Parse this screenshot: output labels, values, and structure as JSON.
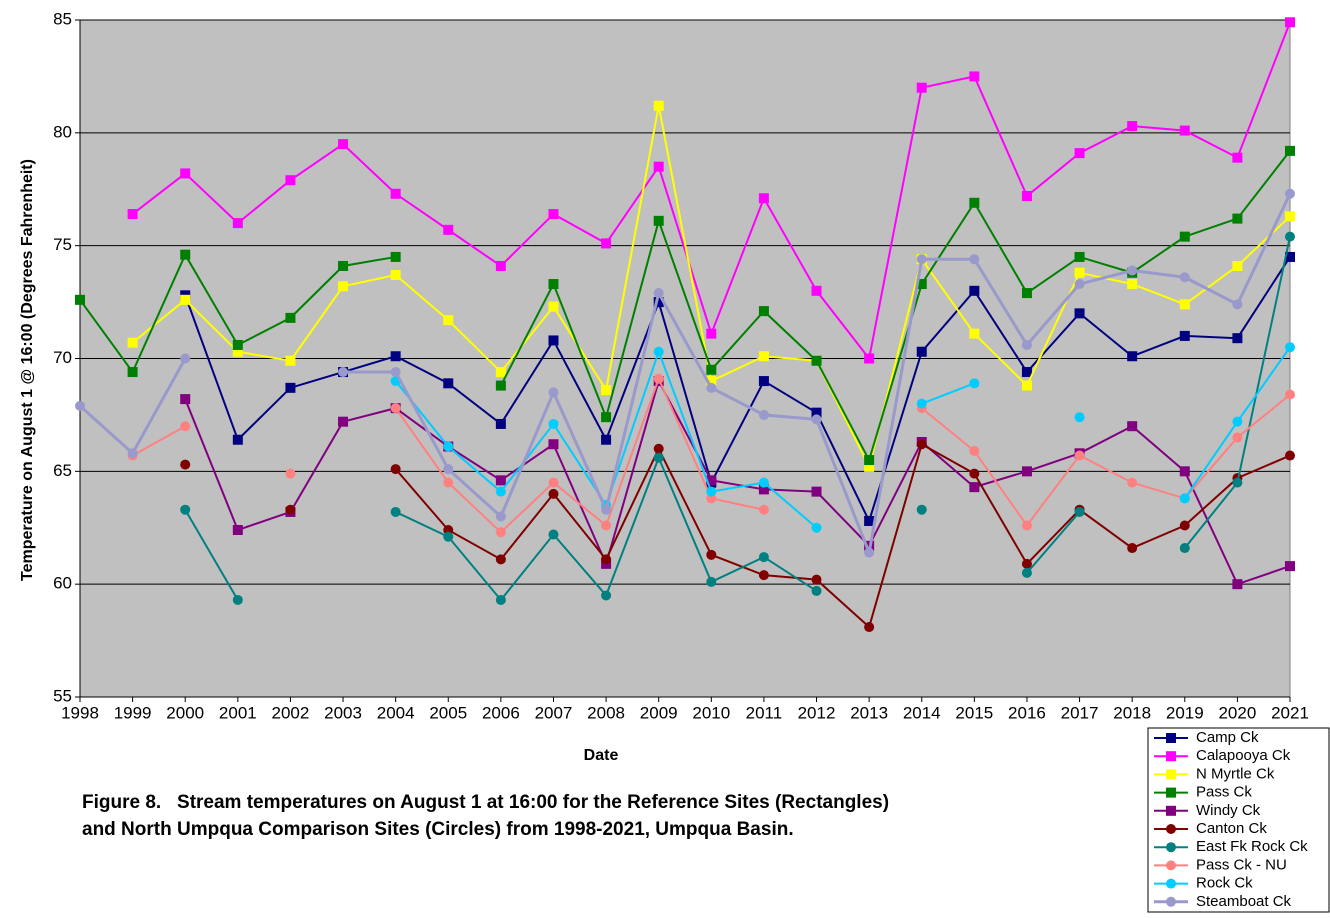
{
  "chart_data": {
    "type": "line",
    "y_label": "Temperature on August 1 @ 16:00 (Degrees Fahrenheit)",
    "x_label": "Date",
    "caption": [
      "Figure 8.   Stream temperatures on August 1 at 16:00 for the Reference Sites (Rectangles)",
      "and North Umpqua Comparison Sites (Circles) from 1998-2021, Umpqua Basin."
    ],
    "x": [
      1998,
      1999,
      2000,
      2001,
      2002,
      2003,
      2004,
      2005,
      2006,
      2007,
      2008,
      2009,
      2010,
      2011,
      2012,
      2013,
      2014,
      2015,
      2016,
      2017,
      2018,
      2019,
      2020,
      2021
    ],
    "xlim": [
      1998,
      2021
    ],
    "xticks": [
      1998,
      1999,
      2000,
      2001,
      2002,
      2003,
      2004,
      2005,
      2006,
      2007,
      2008,
      2009,
      2010,
      2011,
      2012,
      2013,
      2014,
      2015,
      2016,
      2017,
      2018,
      2019,
      2020,
      2021
    ],
    "ylim": [
      55,
      85
    ],
    "yticks": [
      55,
      60,
      65,
      70,
      75,
      80,
      85
    ],
    "grid": true,
    "background": "#c0c0c0",
    "series": [
      {
        "name": "Camp Ck",
        "color": "#000080",
        "marker": "square",
        "values": [
          null,
          null,
          72.8,
          66.4,
          68.7,
          69.4,
          70.1,
          68.9,
          67.1,
          70.8,
          66.4,
          72.5,
          64.5,
          69.0,
          67.6,
          62.8,
          70.3,
          73.0,
          69.4,
          72.0,
          70.1,
          71.0,
          70.9,
          74.5
        ]
      },
      {
        "name": "Calapooya Ck",
        "color": "#ff00ff",
        "marker": "square",
        "values": [
          null,
          76.4,
          78.2,
          76.0,
          77.9,
          79.5,
          77.3,
          75.7,
          74.1,
          76.4,
          75.1,
          78.5,
          71.1,
          77.1,
          73.0,
          70.0,
          82.0,
          82.5,
          77.2,
          79.1,
          80.3,
          80.1,
          78.9,
          84.9
        ]
      },
      {
        "name": "N Myrtle Ck",
        "color": "#ffff00",
        "marker": "square",
        "values": [
          null,
          70.7,
          72.6,
          70.3,
          69.9,
          73.2,
          73.7,
          71.7,
          69.4,
          72.3,
          68.6,
          81.2,
          69.0,
          70.1,
          69.9,
          65.2,
          74.4,
          71.1,
          68.8,
          73.8,
          73.3,
          72.4,
          74.1,
          76.3
        ]
      },
      {
        "name": "Pass Ck",
        "color": "#008000",
        "marker": "square",
        "values": [
          72.6,
          69.4,
          74.6,
          70.6,
          71.8,
          74.1,
          74.5,
          null,
          68.8,
          73.3,
          67.4,
          76.1,
          69.5,
          72.1,
          69.9,
          65.5,
          73.3,
          76.9,
          72.9,
          74.5,
          73.8,
          75.4,
          76.2,
          79.2
        ]
      },
      {
        "name": "Windy Ck",
        "color": "#800080",
        "marker": "square",
        "values": [
          null,
          null,
          68.2,
          62.4,
          63.2,
          67.2,
          67.8,
          66.1,
          64.6,
          66.2,
          60.9,
          69.0,
          64.6,
          64.2,
          64.1,
          61.7,
          66.3,
          64.3,
          65.0,
          65.8,
          67.0,
          65.0,
          60.0,
          60.8
        ]
      },
      {
        "name": "Canton Ck",
        "color": "#800000",
        "marker": "circle",
        "values": [
          null,
          null,
          65.3,
          null,
          63.3,
          null,
          65.1,
          62.4,
          61.1,
          64.0,
          61.1,
          66.0,
          61.3,
          60.4,
          60.2,
          58.1,
          66.2,
          64.9,
          60.9,
          63.3,
          61.6,
          62.6,
          64.7,
          65.7
        ]
      },
      {
        "name": "East Fk Rock Ck",
        "color": "#008080",
        "marker": "circle",
        "values": [
          null,
          null,
          63.3,
          59.3,
          null,
          null,
          63.2,
          62.1,
          59.3,
          62.2,
          59.5,
          65.6,
          60.1,
          61.2,
          59.7,
          null,
          63.3,
          null,
          60.5,
          63.2,
          null,
          61.6,
          64.5,
          75.4
        ]
      },
      {
        "name": "Pass Ck - NU",
        "color": "#ff8080",
        "marker": "circle",
        "values": [
          null,
          65.7,
          67.0,
          null,
          64.9,
          null,
          67.8,
          64.5,
          62.3,
          64.5,
          62.6,
          69.1,
          63.8,
          63.3,
          null,
          null,
          67.8,
          65.9,
          62.6,
          65.7,
          64.5,
          63.8,
          66.5,
          68.4
        ]
      },
      {
        "name": "Rock Ck",
        "color": "#00ccff",
        "marker": "circle",
        "values": [
          null,
          null,
          null,
          null,
          null,
          null,
          69.0,
          66.1,
          64.1,
          67.1,
          63.5,
          70.3,
          64.1,
          64.5,
          62.5,
          null,
          68.0,
          68.9,
          null,
          67.4,
          null,
          63.8,
          67.2,
          70.5
        ]
      },
      {
        "name": "Steamboat Ck",
        "color": "#9999cc",
        "marker": "circle",
        "width": 3,
        "values": [
          67.9,
          65.8,
          70.0,
          null,
          null,
          69.4,
          69.4,
          65.1,
          63.0,
          68.5,
          63.3,
          72.9,
          68.7,
          67.5,
          67.3,
          61.4,
          74.4,
          74.4,
          70.6,
          73.3,
          73.9,
          73.6,
          72.4,
          77.3
        ]
      }
    ]
  }
}
